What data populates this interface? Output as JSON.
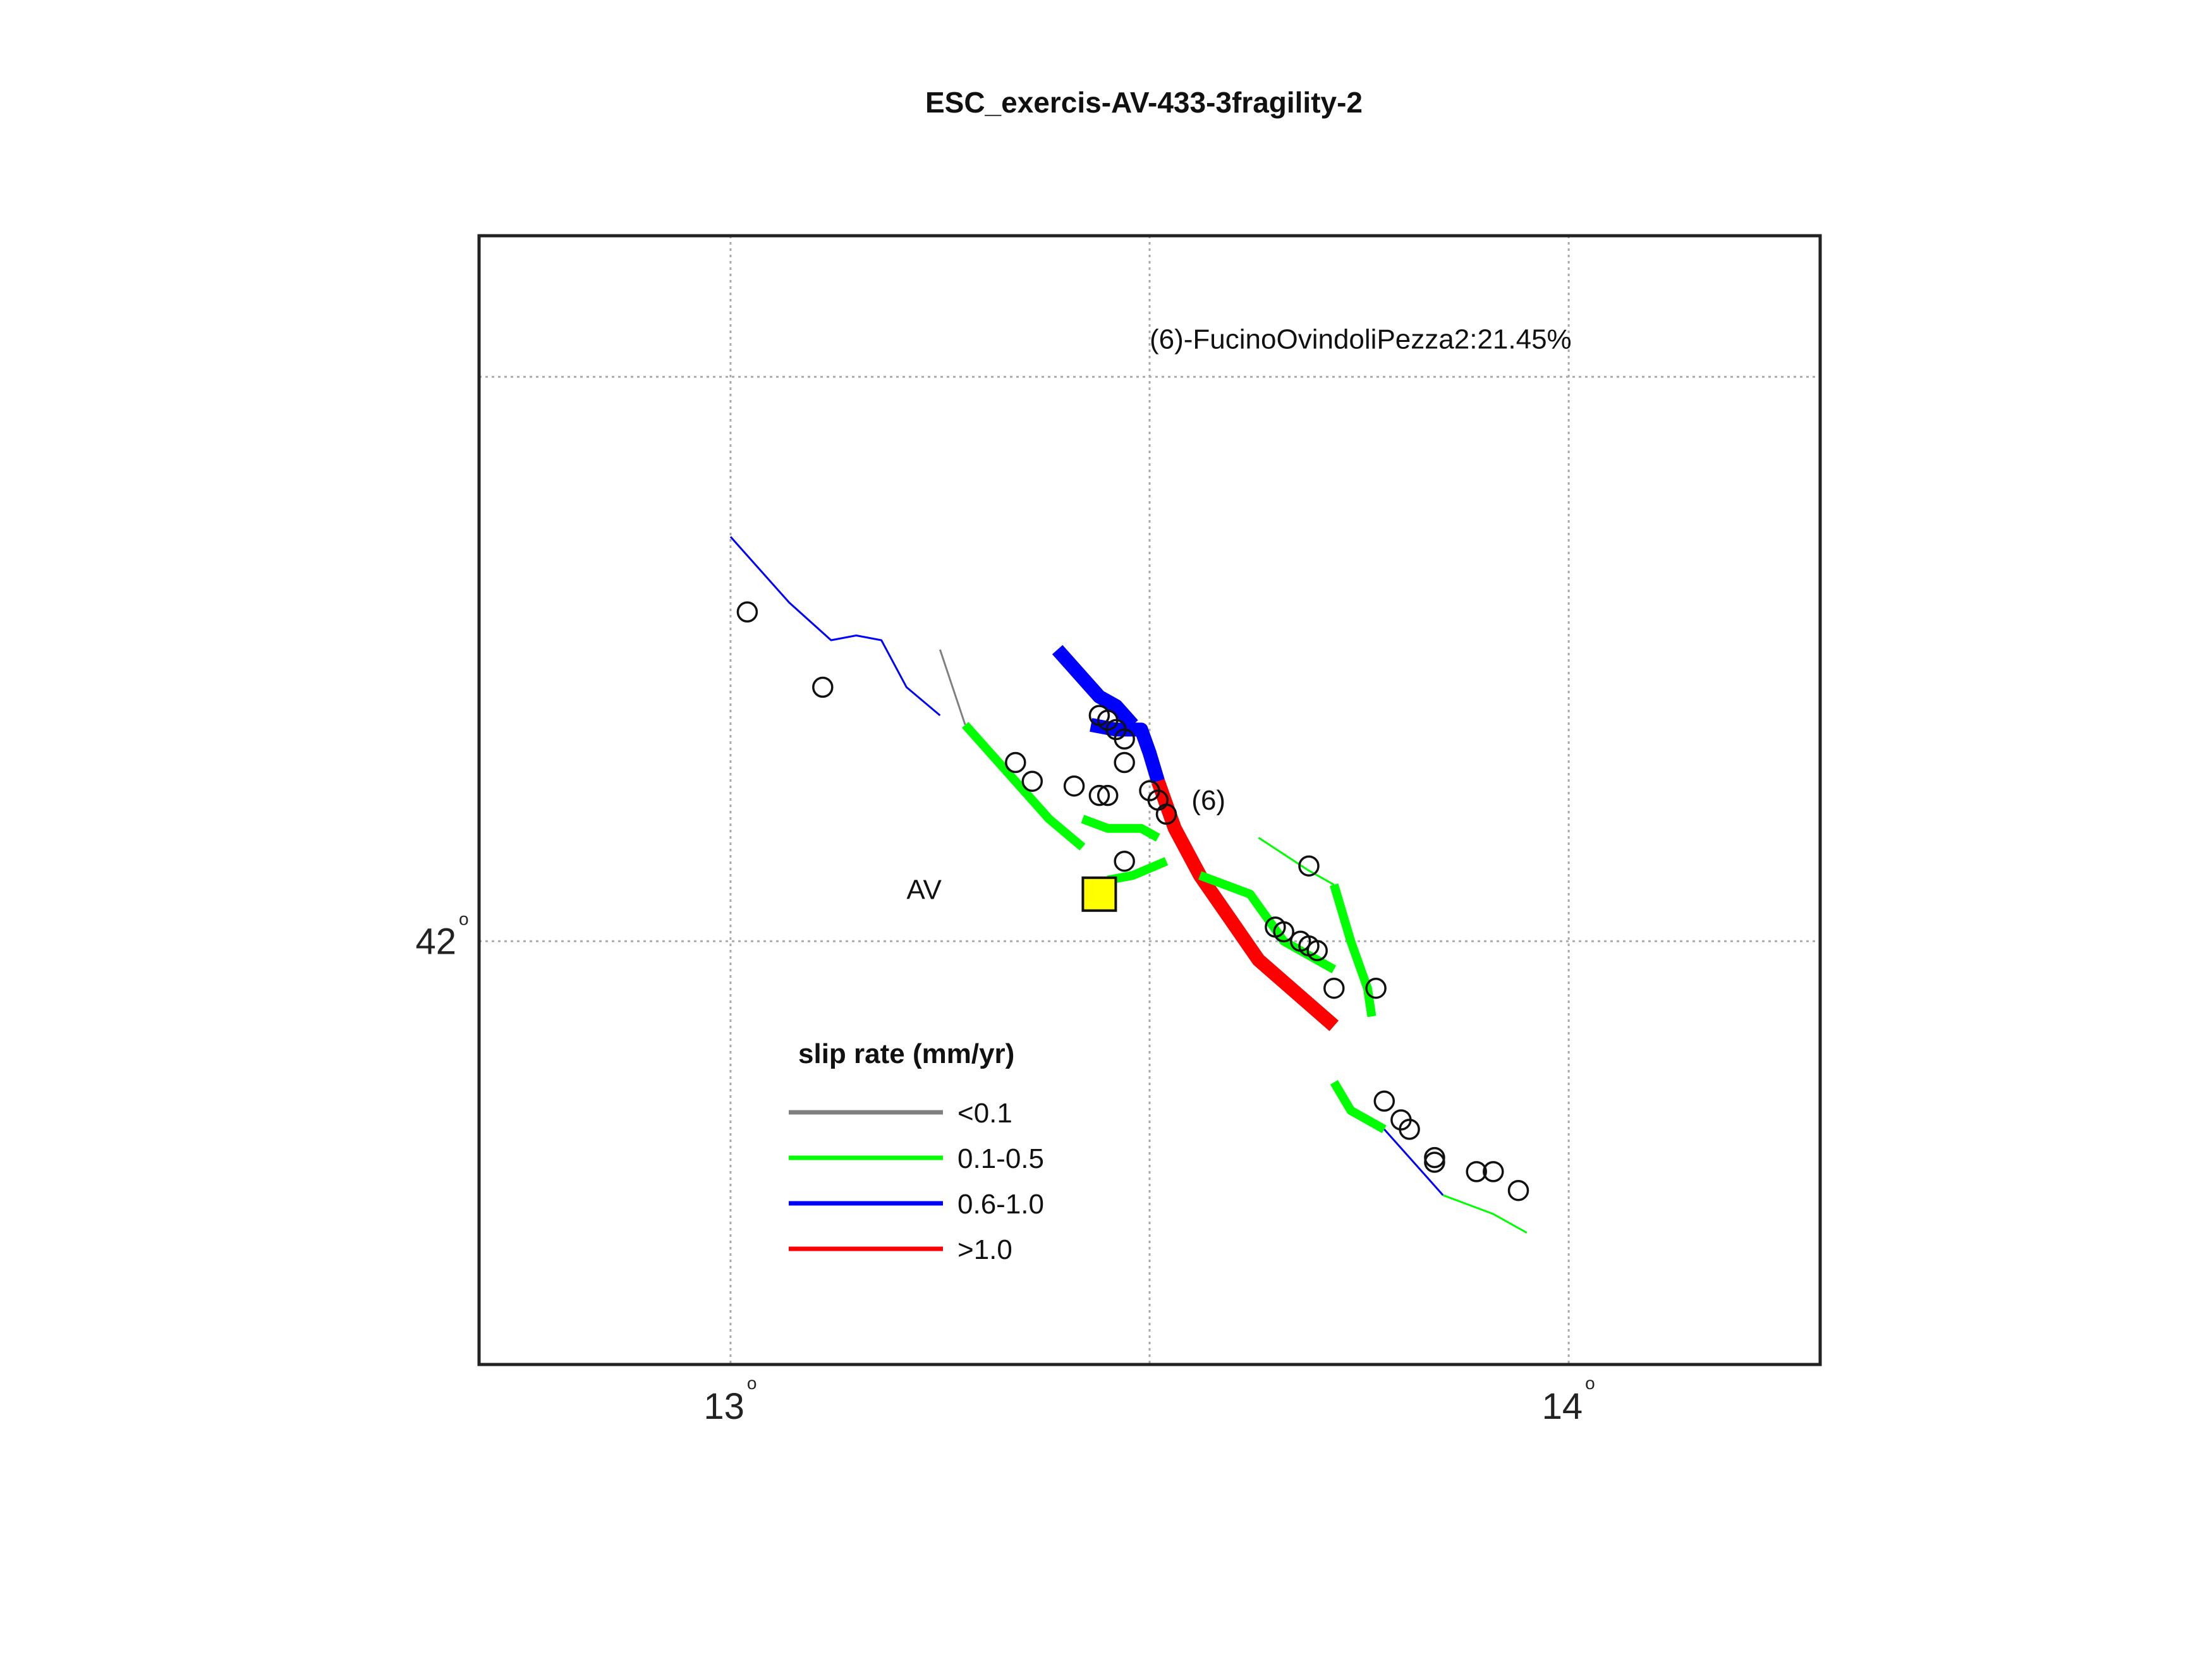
{
  "title": "ESC_exercis-AV-433-3fragility-2",
  "map": {
    "lon_range": [
      12.7,
      14.3
    ],
    "lat_range": [
      41.55,
      42.75
    ],
    "x_ticks": [
      {
        "value": 13.0,
        "label": "13"
      },
      {
        "value": 14.0,
        "label": "14"
      }
    ],
    "y_ticks": [
      {
        "value": 42.0,
        "label": "42"
      }
    ],
    "grid_lons": [
      13.0,
      13.5,
      14.0
    ],
    "grid_lats": [
      42.0,
      42.6
    ],
    "degree_symbol": "o",
    "grid": true
  },
  "annotations": {
    "top_label": {
      "text": "(6)-FucinoOvindoliPezza2:21.45%",
      "lon": 13.5,
      "lat": 42.63
    },
    "fault_label": {
      "text": "(6)",
      "lon": 13.55,
      "lat": 42.14
    },
    "site_label": {
      "text": "AV",
      "lon": 13.21,
      "lat": 42.045
    }
  },
  "site": {
    "lon": 13.44,
    "lat": 42.05,
    "color": "#ffff00"
  },
  "legend": {
    "title": "slip rate (mm/yr)",
    "placement": "lower-left",
    "entries": [
      {
        "label": "<0.1",
        "color": "#808080"
      },
      {
        "label": "0.1-0.5",
        "color": "#00ff00"
      },
      {
        "label": "0.6-1.0",
        "color": "#0000ff"
      },
      {
        "label": ">1.0",
        "color": "#ff0000"
      }
    ]
  },
  "faults": [
    {
      "id": "fault-1",
      "color": "#0000ff",
      "weight": "thin",
      "points": [
        [
          13.0,
          42.43
        ],
        [
          13.07,
          42.36
        ],
        [
          13.12,
          42.32
        ],
        [
          13.15,
          42.325
        ],
        [
          13.18,
          42.32
        ],
        [
          13.21,
          42.27
        ],
        [
          13.25,
          42.24
        ]
      ]
    },
    {
      "id": "fault-2",
      "color": "#808080",
      "weight": "thin",
      "points": [
        [
          13.25,
          42.31
        ],
        [
          13.28,
          42.23
        ]
      ]
    },
    {
      "id": "fault-3",
      "color": "#00ff00",
      "weight": "medium",
      "points": [
        [
          13.28,
          42.23
        ],
        [
          13.33,
          42.18
        ],
        [
          13.38,
          42.13
        ],
        [
          13.42,
          42.1
        ]
      ]
    },
    {
      "id": "fault-4",
      "color": "#00ff00",
      "weight": "medium",
      "points": [
        [
          13.42,
          42.13
        ],
        [
          13.45,
          42.12
        ],
        [
          13.49,
          42.12
        ],
        [
          13.51,
          42.11
        ]
      ]
    },
    {
      "id": "fault-5",
      "color": "#00ff00",
      "weight": "medium",
      "points": [
        [
          13.45,
          42.065
        ],
        [
          13.48,
          42.07
        ],
        [
          13.52,
          42.085
        ]
      ]
    },
    {
      "id": "fault-6",
      "color": "#0000ff",
      "weight": "heavy",
      "points": [
        [
          13.39,
          42.31
        ],
        [
          13.44,
          42.26
        ],
        [
          13.46,
          42.25
        ],
        [
          13.48,
          42.23
        ]
      ]
    },
    {
      "id": "fault-7",
      "color": "#0000ff",
      "weight": "heavy",
      "points": [
        [
          13.43,
          42.23
        ],
        [
          13.46,
          42.225
        ],
        [
          13.49,
          42.225
        ],
        [
          13.5,
          42.2
        ],
        [
          13.51,
          42.17
        ]
      ]
    },
    {
      "id": "fault-8",
      "color": "#ff0000",
      "weight": "heavy",
      "points": [
        [
          13.51,
          42.17
        ],
        [
          13.53,
          42.12
        ],
        [
          13.56,
          42.07
        ],
        [
          13.63,
          41.98
        ],
        [
          13.72,
          41.91
        ]
      ]
    },
    {
      "id": "fault-9",
      "color": "#00ff00",
      "weight": "medium",
      "points": [
        [
          13.56,
          42.07
        ],
        [
          13.62,
          42.05
        ],
        [
          13.66,
          42.0
        ],
        [
          13.72,
          41.97
        ]
      ]
    },
    {
      "id": "fault-10",
      "color": "#00ff00",
      "weight": "thin",
      "points": [
        [
          13.63,
          42.11
        ],
        [
          13.69,
          42.075
        ],
        [
          13.72,
          42.06
        ]
      ]
    },
    {
      "id": "fault-11",
      "color": "#00ff00",
      "weight": "medium",
      "points": [
        [
          13.72,
          42.06
        ],
        [
          13.74,
          42.0
        ],
        [
          13.76,
          41.95
        ],
        [
          13.765,
          41.92
        ]
      ]
    },
    {
      "id": "fault-12",
      "color": "#00ff00",
      "weight": "medium",
      "points": [
        [
          13.72,
          41.85
        ],
        [
          13.74,
          41.82
        ],
        [
          13.78,
          41.8
        ]
      ]
    },
    {
      "id": "fault-13",
      "color": "#0000ff",
      "weight": "thin",
      "points": [
        [
          13.78,
          41.8
        ],
        [
          13.82,
          41.76
        ],
        [
          13.85,
          41.73
        ]
      ]
    },
    {
      "id": "fault-14",
      "color": "#00ff00",
      "weight": "thin",
      "points": [
        [
          13.85,
          41.73
        ],
        [
          13.88,
          41.72
        ],
        [
          13.91,
          41.71
        ],
        [
          13.95,
          41.69
        ]
      ]
    }
  ],
  "markers": [
    [
      13.02,
      42.35
    ],
    [
      13.11,
      42.27
    ],
    [
      13.34,
      42.19
    ],
    [
      13.36,
      42.17
    ],
    [
      13.41,
      42.165
    ],
    [
      13.44,
      42.155
    ],
    [
      13.45,
      42.155
    ],
    [
      13.44,
      42.24
    ],
    [
      13.45,
      42.235
    ],
    [
      13.46,
      42.225
    ],
    [
      13.47,
      42.215
    ],
    [
      13.47,
      42.19
    ],
    [
      13.5,
      42.16
    ],
    [
      13.51,
      42.15
    ],
    [
      13.47,
      42.085
    ],
    [
      13.52,
      42.135
    ],
    [
      13.69,
      42.08
    ],
    [
      13.65,
      42.015
    ],
    [
      13.66,
      42.01
    ],
    [
      13.68,
      42.0
    ],
    [
      13.69,
      41.995
    ],
    [
      13.7,
      41.99
    ],
    [
      13.72,
      41.95
    ],
    [
      13.77,
      41.95
    ],
    [
      13.78,
      41.83
    ],
    [
      13.8,
      41.81
    ],
    [
      13.81,
      41.8
    ],
    [
      13.84,
      41.77
    ],
    [
      13.84,
      41.765
    ],
    [
      13.89,
      41.755
    ],
    [
      13.91,
      41.755
    ],
    [
      13.94,
      41.735
    ]
  ]
}
